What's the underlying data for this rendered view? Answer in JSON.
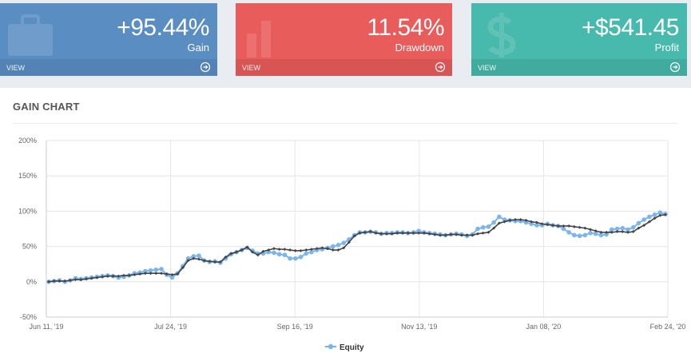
{
  "tiles": {
    "gain": {
      "value": "+95.44%",
      "label": "Gain",
      "view": "VIEW",
      "color": "#5a8dc2",
      "icon": "briefcase-icon"
    },
    "drawdown": {
      "value": "11.54%",
      "label": "Drawdown",
      "view": "VIEW",
      "color": "#e85c5c",
      "icon": "bar-chart-icon"
    },
    "profit": {
      "value": "+$541.45",
      "label": "Profit",
      "view": "VIEW",
      "color": "#48b9ad",
      "icon": "dollar-icon"
    }
  },
  "panel": {
    "title": "GAIN CHART"
  },
  "chart_data": {
    "type": "line",
    "title": "",
    "xlabel": "",
    "ylabel": "",
    "ylim": [
      -50,
      200
    ],
    "y_ticks": [
      -50,
      0,
      50,
      100,
      150,
      200
    ],
    "y_tick_labels": [
      "-50%",
      "0%",
      "50%",
      "100%",
      "150%",
      "200%"
    ],
    "x_ticks": [
      "Jun 11, '19",
      "Jul 24, '19",
      "Sep 16, '19",
      "Nov 13, '19",
      "Jan 08, '20",
      "Feb 24, '20"
    ],
    "grid": true,
    "legend": "bottom-center",
    "colors": {
      "equity": "#7cb5ec",
      "balance": "#434348"
    },
    "series": [
      {
        "name": "Equity",
        "values": [
          0,
          1,
          2,
          0,
          2,
          5,
          4,
          5,
          6,
          7,
          8,
          9,
          8,
          6,
          7,
          9,
          12,
          13,
          15,
          16,
          17,
          18,
          10,
          6,
          12,
          22,
          33,
          36,
          37,
          30,
          28,
          29,
          27,
          33,
          39,
          42,
          45,
          48,
          44,
          40,
          40,
          42,
          41,
          39,
          38,
          33,
          33,
          35,
          40,
          42,
          45,
          46,
          48,
          50,
          52,
          55,
          60,
          66,
          70,
          70,
          71,
          70,
          68,
          69,
          69,
          70,
          70,
          69,
          70,
          72,
          70,
          69,
          68,
          67,
          66,
          67,
          68,
          67,
          65,
          67,
          75,
          77,
          78,
          84,
          92,
          88,
          87,
          86,
          86,
          84,
          82,
          80,
          80,
          82,
          80,
          79,
          75,
          70,
          66,
          65,
          66,
          69,
          68,
          66,
          67,
          74,
          75,
          76,
          74,
          77,
          83,
          88,
          92,
          95,
          98,
          96
        ]
      },
      {
        "name": "",
        "values": [
          0,
          1,
          1,
          1,
          2,
          3,
          3,
          4,
          5,
          6,
          7,
          8,
          8,
          8,
          9,
          9,
          10,
          11,
          12,
          12,
          12,
          12,
          11,
          10,
          11,
          20,
          30,
          33,
          32,
          30,
          29,
          28,
          28,
          35,
          40,
          42,
          45,
          49,
          42,
          38,
          43,
          45,
          47,
          46,
          46,
          45,
          44,
          44,
          45,
          46,
          47,
          48,
          47,
          45,
          45,
          48,
          56,
          65,
          69,
          70,
          71,
          69,
          68,
          68,
          68,
          69,
          69,
          69,
          69,
          69,
          69,
          68,
          67,
          66,
          66,
          67,
          67,
          66,
          66,
          66,
          68,
          69,
          70,
          76,
          83,
          85,
          87,
          88,
          88,
          87,
          85,
          84,
          82,
          81,
          80,
          79,
          79,
          79,
          78,
          77,
          76,
          74,
          72,
          70,
          70,
          70,
          71,
          71,
          70,
          71,
          76,
          80,
          85,
          90,
          94,
          95
        ]
      }
    ]
  }
}
